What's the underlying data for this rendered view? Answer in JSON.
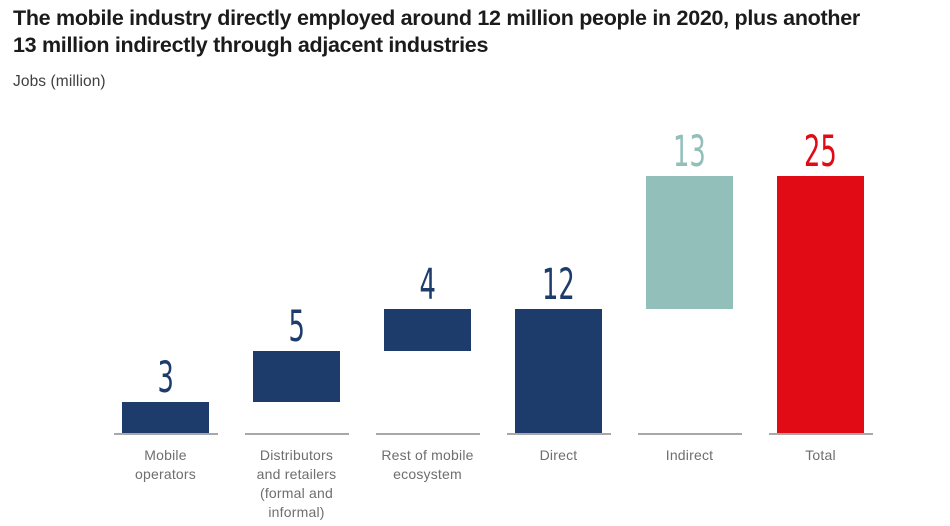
{
  "header": {
    "title_lines": [
      "The mobile industry directly employed around 12 million people in 2020, plus another",
      "13 million indirectly through adjacent industries"
    ],
    "units_label": "Jobs (million)"
  },
  "chart_data": {
    "type": "bar",
    "subtype": "waterfall",
    "title": "The mobile industry directly employed around 12 million people in 2020, plus another 13 million indirectly through adjacent industries",
    "ylabel": "Jobs (million)",
    "ylim": [
      0,
      25
    ],
    "grid": false,
    "legend": false,
    "colors": {
      "navy": "#1e3c6b",
      "teal": "#93bfba",
      "red": "#e10b15",
      "baseline_gray": "#a8a8a8",
      "category_label_gray": "#6d6e70"
    },
    "bars": [
      {
        "category": "Mobile operators",
        "label_lines": [
          "Mobile",
          "operators"
        ],
        "value": 3,
        "start": 0,
        "end": 3,
        "color": "navy"
      },
      {
        "category": "Distributors and retailers (formal and informal)",
        "label_lines": [
          "Distributors",
          "and retailers",
          "(formal and",
          "informal)"
        ],
        "value": 5,
        "start": 3,
        "end": 8,
        "color": "navy"
      },
      {
        "category": "Rest of mobile ecosystem",
        "label_lines": [
          "Rest of mobile",
          "ecosystem"
        ],
        "value": 4,
        "start": 8,
        "end": 12,
        "color": "navy"
      },
      {
        "category": "Direct",
        "label_lines": [
          "Direct"
        ],
        "value": 12,
        "start": 0,
        "end": 12,
        "color": "navy"
      },
      {
        "category": "Indirect",
        "label_lines": [
          "Indirect"
        ],
        "value": 13,
        "start": 12,
        "end": 25,
        "color": "teal"
      },
      {
        "category": "Total",
        "label_lines": [
          "Total"
        ],
        "value": 25,
        "start": 0,
        "end": 25,
        "color": "red"
      }
    ]
  }
}
